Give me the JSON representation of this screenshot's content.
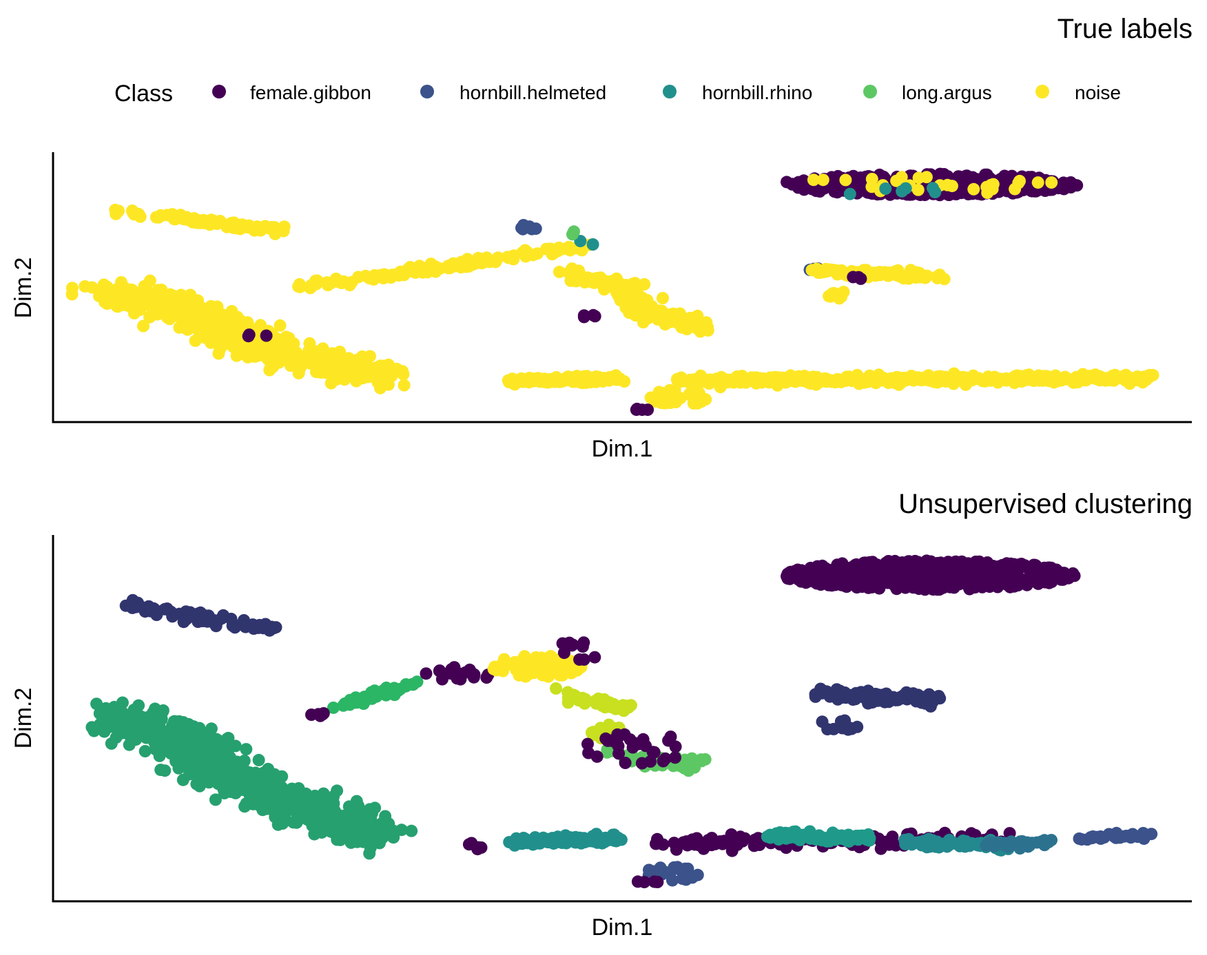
{
  "legend": {
    "title": "Class",
    "entries": [
      {
        "label": "female.gibbon",
        "color": "#440154"
      },
      {
        "label": "hornbill.helmeted",
        "color": "#3B528B"
      },
      {
        "label": "hornbill.rhino",
        "color": "#21908C"
      },
      {
        "label": "long.argus",
        "color": "#5DC863"
      },
      {
        "label": "noise",
        "color": "#FDE725"
      }
    ]
  },
  "chart_data": [
    {
      "type": "scatter",
      "title": "True labels",
      "xlabel": "Dim.1",
      "ylabel": "Dim.2",
      "xlim": [
        0,
        100
      ],
      "ylim": [
        0,
        100
      ],
      "grid": false,
      "ticks": false,
      "legend_position": "top",
      "point_color_by": "Class",
      "palette": [
        "#440154",
        "#3B528B",
        "#21908C",
        "#5DC863",
        "#FDE725"
      ],
      "clusters": [
        {
          "class": "female.gibbon",
          "color": "#440154",
          "n": 450,
          "shape": "ellipse",
          "cx": 77,
          "cy": 88,
          "rx": 13,
          "ry": 4
        },
        {
          "class": "noise",
          "color": "#FDE725",
          "n": 28,
          "shape": "ellipse",
          "cx": 77,
          "cy": 88,
          "rx": 12,
          "ry": 3.5
        },
        {
          "class": "hornbill.rhino",
          "color": "#21908C",
          "n": 6,
          "shape": "ellipse",
          "cx": 73,
          "cy": 86,
          "rx": 6,
          "ry": 2
        },
        {
          "class": "noise",
          "color": "#FDE725",
          "n": 75,
          "shape": "line",
          "x": [
            6,
            20
          ],
          "y": [
            78,
            71
          ],
          "spread": 1.2
        },
        {
          "class": "noise",
          "color": "#FDE725",
          "n": 650,
          "shape": "polyline",
          "x": [
            5,
            10,
            14,
            20,
            29
          ],
          "y": [
            47,
            43,
            36,
            25,
            17
          ],
          "spread": 4.2
        },
        {
          "class": "female.gibbon",
          "color": "#440154",
          "n": 3,
          "shape": "ellipse",
          "cx": 18,
          "cy": 32,
          "rx": 1.5,
          "ry": 1
        },
        {
          "class": "noise",
          "color": "#FDE725",
          "n": 140,
          "shape": "line",
          "x": [
            22,
            47
          ],
          "y": [
            50,
            65
          ],
          "spread": 1.3
        },
        {
          "class": "hornbill.helmeted",
          "color": "#3B528B",
          "n": 6,
          "shape": "ellipse",
          "cx": 41.5,
          "cy": 72,
          "rx": 1.2,
          "ry": 1.2
        },
        {
          "class": "hornbill.rhino",
          "color": "#21908C",
          "n": 2,
          "shape": "ellipse",
          "cx": 47,
          "cy": 67,
          "rx": 1,
          "ry": 2
        },
        {
          "class": "long.argus",
          "color": "#5DC863",
          "n": 2,
          "shape": "ellipse",
          "cx": 45.5,
          "cy": 70,
          "rx": 0.5,
          "ry": 1
        },
        {
          "class": "noise",
          "color": "#FDE725",
          "n": 190,
          "shape": "polyline",
          "x": [
            45,
            50,
            52,
            57
          ],
          "y": [
            55,
            50,
            41,
            35
          ],
          "spread": 2.2
        },
        {
          "class": "female.gibbon",
          "color": "#440154",
          "n": 4,
          "shape": "ellipse",
          "cx": 46.5,
          "cy": 39,
          "rx": 1.2,
          "ry": 2
        },
        {
          "class": "hornbill.helmeted",
          "color": "#3B528B",
          "n": 3,
          "shape": "ellipse",
          "cx": 66.5,
          "cy": 57,
          "rx": 0.8,
          "ry": 0.8
        },
        {
          "class": "noise",
          "color": "#FDE725",
          "n": 90,
          "shape": "polyline",
          "x": [
            67,
            70,
            78
          ],
          "y": [
            56,
            55,
            54
          ],
          "spread": 1.4
        },
        {
          "class": "noise",
          "color": "#FDE725",
          "n": 10,
          "shape": "ellipse",
          "cx": 69,
          "cy": 47,
          "rx": 2,
          "ry": 1.4
        },
        {
          "class": "female.gibbon",
          "color": "#440154",
          "n": 3,
          "shape": "ellipse",
          "cx": 70,
          "cy": 53,
          "rx": 1,
          "ry": 1
        },
        {
          "class": "noise",
          "color": "#FDE725",
          "n": 135,
          "shape": "line",
          "x": [
            40,
            50
          ],
          "y": [
            15,
            16
          ],
          "spread": 1.0
        },
        {
          "class": "noise",
          "color": "#FDE725",
          "n": 420,
          "shape": "line",
          "x": [
            55,
            96
          ],
          "y": [
            15,
            16
          ],
          "spread": 1.3
        },
        {
          "class": "noise",
          "color": "#FDE725",
          "n": 40,
          "shape": "ellipse",
          "cx": 55,
          "cy": 9,
          "rx": 2.8,
          "ry": 2.8
        },
        {
          "class": "female.gibbon",
          "color": "#440154",
          "n": 4,
          "shape": "ellipse",
          "cx": 51.5,
          "cy": 4.5,
          "rx": 1,
          "ry": 0.3
        }
      ]
    },
    {
      "type": "scatter",
      "title": "Unsupervised clustering",
      "xlabel": "Dim.1",
      "ylabel": "Dim.2",
      "xlim": [
        0,
        100
      ],
      "ylim": [
        0,
        100
      ],
      "grid": false,
      "ticks": false,
      "legend": "none",
      "clusters": [
        {
          "color": "#440154",
          "n": 470,
          "shape": "ellipse",
          "cx": 77,
          "cy": 89,
          "rx": 13,
          "ry": 4
        },
        {
          "color": "#31356E",
          "n": 75,
          "shape": "line",
          "x": [
            6,
            20
          ],
          "y": [
            81,
            74
          ],
          "spread": 1.2
        },
        {
          "color": "#26A06F",
          "n": 650,
          "shape": "polyline",
          "x": [
            5,
            10,
            14,
            20,
            29
          ],
          "y": [
            50,
            46,
            38,
            27,
            18
          ],
          "spread": 4.2
        },
        {
          "color": "#31356E",
          "n": 90,
          "shape": "polyline",
          "x": [
            67,
            70,
            78
          ],
          "y": [
            57,
            56,
            55
          ],
          "spread": 1.4
        },
        {
          "color": "#31356E",
          "n": 10,
          "shape": "ellipse",
          "cx": 69,
          "cy": 48,
          "rx": 2,
          "ry": 1.5
        },
        {
          "color": "#2BB665",
          "n": 45,
          "shape": "line",
          "x": [
            25,
            32
          ],
          "y": [
            53,
            60
          ],
          "spread": 0.8
        },
        {
          "color": "#440154",
          "n": 20,
          "shape": "ellipse",
          "cx": 36,
          "cy": 62,
          "rx": 3.5,
          "ry": 2
        },
        {
          "color": "#440154",
          "n": 6,
          "shape": "ellipse",
          "cx": 23,
          "cy": 51,
          "rx": 1,
          "ry": 0.6
        },
        {
          "color": "#FDE725",
          "n": 90,
          "shape": "ellipse",
          "cx": 42.5,
          "cy": 64,
          "rx": 4,
          "ry": 3
        },
        {
          "color": "#440154",
          "n": 10,
          "shape": "ellipse",
          "cx": 46,
          "cy": 68,
          "rx": 2,
          "ry": 3
        },
        {
          "color": "#C8E020",
          "n": 40,
          "shape": "line",
          "x": [
            45,
            51
          ],
          "y": [
            56,
            52
          ],
          "spread": 1.2
        },
        {
          "color": "#C8E020",
          "n": 25,
          "shape": "ellipse",
          "cx": 48.5,
          "cy": 46,
          "rx": 1.5,
          "ry": 2.2
        },
        {
          "color": "#5DC863",
          "n": 45,
          "shape": "polyline",
          "x": [
            48,
            54,
            57
          ],
          "y": [
            41,
            37,
            38
          ],
          "spread": 1.3
        },
        {
          "color": "#440154",
          "n": 30,
          "shape": "ellipse",
          "cx": 51,
          "cy": 42,
          "rx": 4.5,
          "ry": 5
        },
        {
          "color": "#21908C",
          "n": 130,
          "shape": "line",
          "x": [
            40,
            50
          ],
          "y": [
            16,
            17
          ],
          "spread": 1.0
        },
        {
          "color": "#440154",
          "n": 5,
          "shape": "ellipse",
          "cx": 37,
          "cy": 15,
          "rx": 1,
          "ry": 1
        },
        {
          "color": "#440154",
          "n": 120,
          "shape": "line",
          "x": [
            53,
            84
          ],
          "y": [
            16,
            17
          ],
          "spread": 1.6
        },
        {
          "color": "#1F9A8A",
          "n": 80,
          "shape": "line",
          "x": [
            63,
            72
          ],
          "y": [
            18,
            17
          ],
          "spread": 1.2
        },
        {
          "color": "#23898E",
          "n": 80,
          "shape": "line",
          "x": [
            75,
            84
          ],
          "y": [
            16,
            15
          ],
          "spread": 1.0
        },
        {
          "color": "#2C728E",
          "n": 45,
          "shape": "line",
          "x": [
            82,
            88
          ],
          "y": [
            15,
            16
          ],
          "spread": 0.8
        },
        {
          "color": "#3B528B",
          "n": 35,
          "shape": "line",
          "x": [
            90,
            96
          ],
          "y": [
            17,
            18
          ],
          "spread": 0.8
        },
        {
          "color": "#3B528B",
          "n": 26,
          "shape": "ellipse",
          "cx": 54.5,
          "cy": 7.5,
          "rx": 2.5,
          "ry": 2
        },
        {
          "color": "#440154",
          "n": 5,
          "shape": "ellipse",
          "cx": 52,
          "cy": 5,
          "rx": 1.2,
          "ry": 0.4
        }
      ]
    }
  ]
}
